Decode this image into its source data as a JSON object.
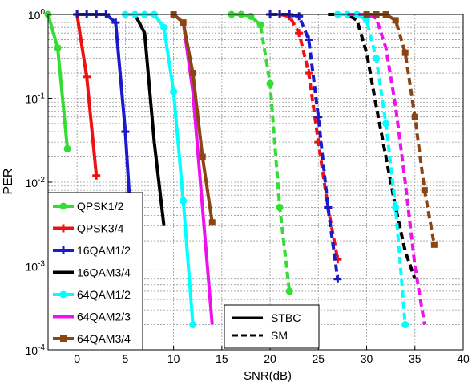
{
  "chart_data": {
    "type": "line",
    "xlabel": "SNR(dB)",
    "ylabel": "PER",
    "xlim": [
      -3,
      40
    ],
    "ylim": [
      0.0001,
      1
    ],
    "yscale": "log",
    "grid": true,
    "x_ticks": [
      0,
      5,
      10,
      15,
      20,
      25,
      30,
      35,
      40
    ],
    "y_ticks": [
      {
        "value": 1,
        "mantissa": "10",
        "exp": "0"
      },
      {
        "value": 0.1,
        "mantissa": "10",
        "exp": "-1"
      },
      {
        "value": 0.01,
        "mantissa": "10",
        "exp": "-2"
      },
      {
        "value": 0.001,
        "mantissa": "10",
        "exp": "-3"
      },
      {
        "value": 0.0001,
        "mantissa": "10",
        "exp": "-4"
      }
    ],
    "legend_modulation": [
      "QPSK1/2",
      "QPSK3/4",
      "16QAM1/2",
      "16QAM3/4",
      "64QAM1/2",
      "64QAM2/3",
      "64QAM3/4"
    ],
    "legend_scheme": [
      "STBC",
      "SM"
    ],
    "series": [
      {
        "name": "QPSK1/2",
        "scheme": "STBC",
        "color": "#33dd33",
        "marker": "circle",
        "x": [
          -3,
          -2,
          -1
        ],
        "y": [
          1,
          0.4,
          0.025
        ]
      },
      {
        "name": "QPSK3/4",
        "scheme": "STBC",
        "color": "#ee1111",
        "marker": "plus",
        "x": [
          0,
          1,
          2
        ],
        "y": [
          1,
          0.18,
          0.012
        ]
      },
      {
        "name": "16QAM1/2",
        "scheme": "STBC",
        "color": "#1a1acc",
        "marker": "plus",
        "x": [
          0,
          1,
          2,
          3,
          4,
          5,
          6
        ],
        "y": [
          1,
          1,
          1,
          1,
          0.8,
          0.04,
          0.0006
        ]
      },
      {
        "name": "16QAM3/4",
        "scheme": "STBC",
        "color": "#000000",
        "marker": "none",
        "x": [
          6,
          7,
          8,
          9
        ],
        "y": [
          1,
          0.6,
          0.03,
          0.003
        ]
      },
      {
        "name": "64QAM1/2",
        "scheme": "STBC",
        "color": "#00ffff",
        "marker": "circle",
        "x": [
          5,
          6,
          7,
          8,
          9,
          10,
          11,
          12
        ],
        "y": [
          1,
          1,
          1,
          1,
          0.7,
          0.12,
          0.006,
          0.0002
        ]
      },
      {
        "name": "64QAM2/3",
        "scheme": "STBC",
        "color": "#ee11ee",
        "marker": "none",
        "x": [
          10,
          11,
          12,
          13,
          14
        ],
        "y": [
          1,
          0.8,
          0.12,
          0.005,
          0.0002
        ]
      },
      {
        "name": "64QAM3/4",
        "scheme": "STBC",
        "color": "#8b4513",
        "marker": "square",
        "x": [
          10,
          11,
          12,
          13,
          14
        ],
        "y": [
          1,
          0.8,
          0.2,
          0.02,
          0.0033
        ]
      },
      {
        "name": "QPSK1/2",
        "scheme": "SM",
        "color": "#33dd33",
        "marker": "circle",
        "x": [
          16,
          17,
          18,
          19,
          20,
          21,
          22
        ],
        "y": [
          1,
          1,
          0.95,
          0.75,
          0.15,
          0.005,
          0.0005
        ]
      },
      {
        "name": "QPSK3/4",
        "scheme": "SM",
        "color": "#ee1111",
        "marker": "plus",
        "x": [
          20,
          21,
          22,
          23,
          24,
          25,
          26,
          27
        ],
        "y": [
          1,
          1,
          0.95,
          0.6,
          0.2,
          0.03,
          0.005,
          0.0012
        ]
      },
      {
        "name": "16QAM1/2",
        "scheme": "SM",
        "color": "#1a1acc",
        "marker": "plus",
        "x": [
          20,
          21,
          22,
          23,
          24,
          25,
          26,
          27
        ],
        "y": [
          1,
          1,
          1,
          0.95,
          0.5,
          0.06,
          0.005,
          0.0007
        ]
      },
      {
        "name": "16QAM3/4",
        "scheme": "SM",
        "color": "#000000",
        "marker": "none",
        "x": [
          26,
          27,
          28,
          29,
          30,
          31,
          32,
          33,
          34,
          35
        ],
        "y": [
          1,
          1,
          1,
          0.85,
          0.35,
          0.08,
          0.02,
          0.005,
          0.0015,
          0.0007
        ]
      },
      {
        "name": "64QAM1/2",
        "scheme": "SM",
        "color": "#00ffff",
        "marker": "circle",
        "x": [
          27,
          28,
          29,
          30,
          31,
          32,
          33,
          34
        ],
        "y": [
          1,
          1,
          1,
          0.85,
          0.3,
          0.05,
          0.005,
          0.0002
        ]
      },
      {
        "name": "64QAM2/3",
        "scheme": "SM",
        "color": "#ee11ee",
        "marker": "none",
        "x": [
          28,
          29,
          30,
          31,
          32,
          33,
          34,
          35,
          36
        ],
        "y": [
          1,
          1,
          1,
          0.9,
          0.4,
          0.08,
          0.01,
          0.001,
          0.0002
        ]
      },
      {
        "name": "64QAM3/4",
        "scheme": "SM",
        "color": "#8b4513",
        "marker": "square",
        "x": [
          30,
          31,
          32,
          33,
          34,
          35,
          36,
          37
        ],
        "y": [
          1,
          1,
          1,
          0.85,
          0.35,
          0.06,
          0.008,
          0.0018
        ]
      }
    ]
  }
}
